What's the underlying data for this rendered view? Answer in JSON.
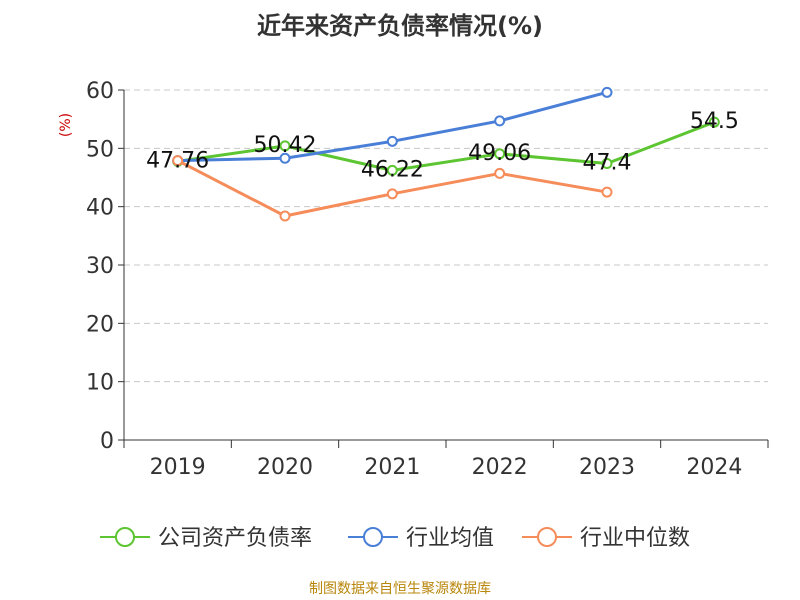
{
  "title": "近年来资产负债率情况(%)",
  "source": "制图数据来自恒生聚源数据库",
  "chart_data": {
    "type": "line",
    "title": "近年来资产负债率情况(%)",
    "ylabel": "(%)",
    "xlabel": "",
    "categories": [
      "2019",
      "2020",
      "2021",
      "2022",
      "2023",
      "2024"
    ],
    "ylim": [
      0,
      60
    ],
    "yticks": [
      0,
      10,
      20,
      30,
      40,
      50,
      60
    ],
    "grid": true,
    "legend_position": "bottom",
    "series": [
      {
        "name": "公司资产负债率",
        "color": "#5cc531",
        "values": [
          47.76,
          50.42,
          46.22,
          49.06,
          47.4,
          54.5
        ],
        "data_labels": [
          "47.76",
          "50.42",
          "46.22",
          "49.06",
          "47.4",
          "54.5"
        ]
      },
      {
        "name": "行业均值",
        "color": "#4a7fd8",
        "values": [
          47.9,
          48.3,
          51.2,
          54.7,
          59.6,
          null
        ]
      },
      {
        "name": "行业中位数",
        "color": "#f58c5a",
        "values": [
          47.9,
          38.4,
          42.2,
          45.7,
          42.5,
          null
        ]
      }
    ]
  }
}
